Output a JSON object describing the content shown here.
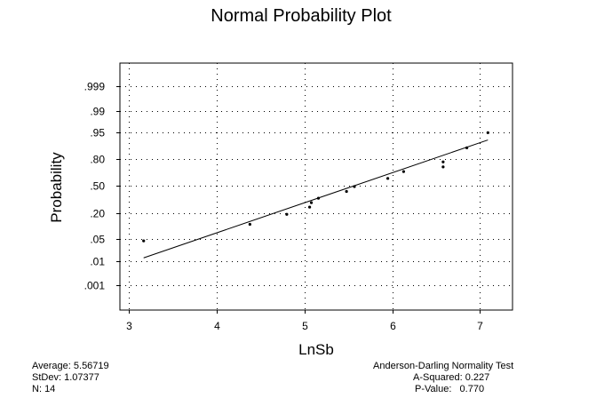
{
  "chart_data": {
    "type": "scatter",
    "title": "Normal Probability Plot",
    "xlabel": "LnSb",
    "ylabel": "Probability",
    "xlim": [
      2.9,
      7.37
    ],
    "x_ticks": [
      3,
      4,
      5,
      6,
      7
    ],
    "y_ticks": [
      {
        "label": ".001",
        "p": 0.001
      },
      {
        "label": ".01",
        "p": 0.01
      },
      {
        "label": ".05",
        "p": 0.05
      },
      {
        "label": ".20",
        "p": 0.2
      },
      {
        "label": ".50",
        "p": 0.5
      },
      {
        "label": ".80",
        "p": 0.8
      },
      {
        "label": ".95",
        "p": 0.95
      },
      {
        "label": ".99",
        "p": 0.99
      },
      {
        "label": ".999",
        "p": 0.999
      }
    ],
    "grid": true,
    "points": [
      {
        "x": 3.17,
        "p": 0.044
      },
      {
        "x": 4.38,
        "p": 0.116
      },
      {
        "x": 4.8,
        "p": 0.188
      },
      {
        "x": 5.06,
        "p": 0.254
      },
      {
        "x": 5.08,
        "p": 0.3
      },
      {
        "x": 5.16,
        "p": 0.35
      },
      {
        "x": 5.48,
        "p": 0.43
      },
      {
        "x": 5.57,
        "p": 0.49
      },
      {
        "x": 5.95,
        "p": 0.59
      },
      {
        "x": 6.13,
        "p": 0.67
      },
      {
        "x": 6.58,
        "p": 0.77
      },
      {
        "x": 6.58,
        "p": 0.72
      },
      {
        "x": 6.85,
        "p": 0.88
      },
      {
        "x": 7.09,
        "p": 0.95
      }
    ],
    "fit_line": {
      "mean": 5.56719,
      "sd": 1.07377,
      "x_from": 3.17,
      "x_to": 7.09
    }
  },
  "summary": {
    "average_label": "Average:",
    "average_value": "5.56719",
    "stdev_label": "StDev:",
    "stdev_value": "1.07377",
    "n_label": "N:",
    "n_value": "14"
  },
  "normality_test": {
    "title": "Anderson-Darling Normality Test",
    "asq_label": "A-Squared:",
    "asq_value": "0.227",
    "p_label": "P-Value:",
    "p_value": "0.770"
  }
}
